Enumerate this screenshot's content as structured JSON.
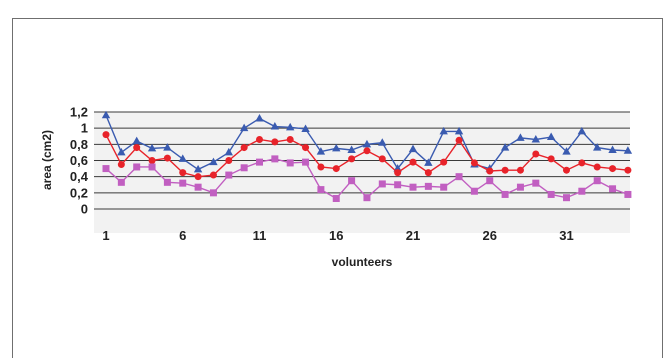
{
  "chart_data": {
    "type": "line",
    "xlabel": "volunteers",
    "ylabel": "area (cm2)",
    "ylim": [
      0,
      1.2
    ],
    "yticks": [
      "0",
      "0,2",
      "0,4",
      "0,6",
      "0,8",
      "1",
      "1,2"
    ],
    "xticks": [
      "1",
      "6",
      "11",
      "16",
      "21",
      "26",
      "31"
    ],
    "grid": true,
    "x": [
      1,
      2,
      3,
      4,
      5,
      6,
      7,
      8,
      9,
      10,
      11,
      12,
      13,
      14,
      15,
      16,
      17,
      18,
      19,
      20,
      21,
      22,
      23,
      24,
      25,
      26,
      27,
      28,
      29,
      30,
      31,
      32,
      33,
      34,
      35
    ],
    "series": [
      {
        "color": "#3a5bb0",
        "marker": "triangle",
        "values": [
          1.16,
          0.7,
          0.84,
          0.75,
          0.76,
          0.62,
          0.49,
          0.58,
          0.7,
          1.0,
          1.12,
          1.02,
          1.01,
          0.99,
          0.71,
          0.75,
          0.73,
          0.8,
          0.82,
          0.5,
          0.74,
          0.57,
          0.96,
          0.96,
          0.55,
          0.5,
          0.76,
          0.88,
          0.86,
          0.89,
          0.71,
          0.96,
          0.76,
          0.73,
          0.72
        ]
      },
      {
        "color": "#e8232a",
        "marker": "circle",
        "values": [
          0.92,
          0.55,
          0.76,
          0.6,
          0.63,
          0.45,
          0.4,
          0.42,
          0.6,
          0.76,
          0.86,
          0.83,
          0.86,
          0.76,
          0.52,
          0.5,
          0.62,
          0.72,
          0.62,
          0.45,
          0.58,
          0.45,
          0.58,
          0.85,
          0.57,
          0.47,
          0.48,
          0.48,
          0.68,
          0.62,
          0.48,
          0.57,
          0.52,
          0.5,
          0.48
        ]
      },
      {
        "color": "#c15fc1",
        "marker": "square",
        "values": [
          0.5,
          0.33,
          0.52,
          0.52,
          0.33,
          0.32,
          0.27,
          0.2,
          0.42,
          0.51,
          0.58,
          0.62,
          0.57,
          0.58,
          0.24,
          0.13,
          0.35,
          0.14,
          0.31,
          0.3,
          0.27,
          0.28,
          0.27,
          0.4,
          0.22,
          0.35,
          0.18,
          0.27,
          0.32,
          0.18,
          0.14,
          0.22,
          0.35,
          0.25,
          0.18
        ]
      }
    ]
  }
}
